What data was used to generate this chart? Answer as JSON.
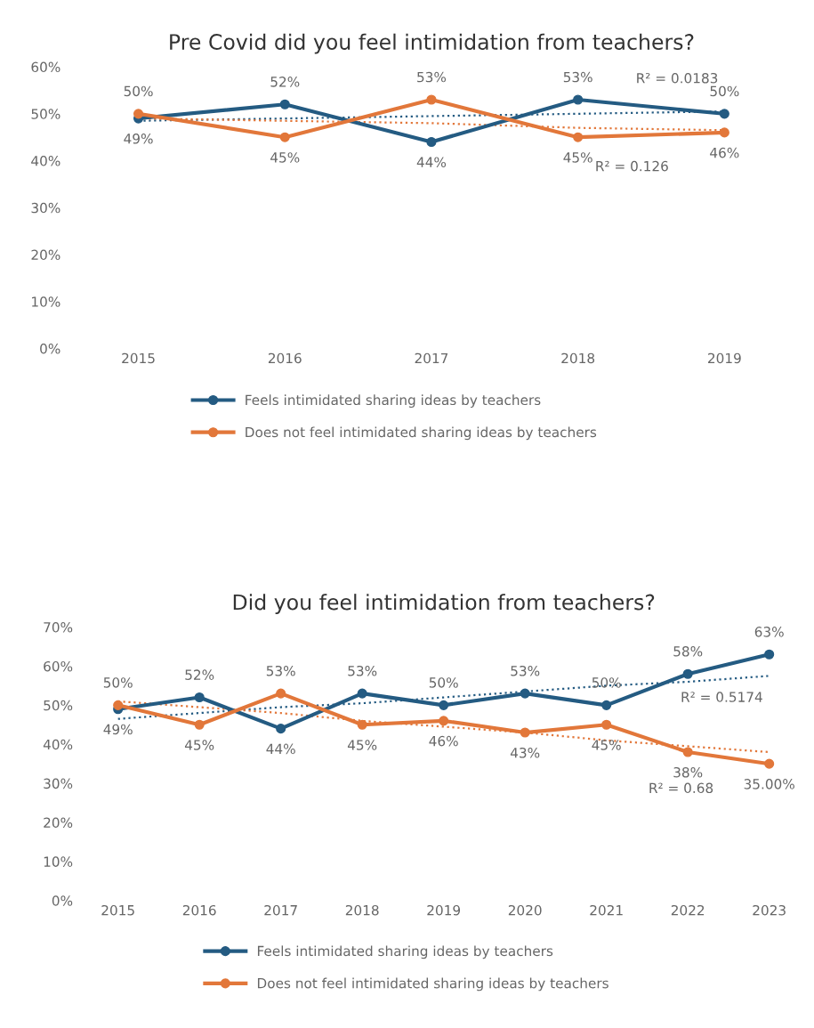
{
  "chart_data": [
    {
      "type": "line",
      "title": "Pre Covid did you feel intimidation from teachers?",
      "categories": [
        "2015",
        "2016",
        "2017",
        "2018",
        "2019"
      ],
      "ylim": [
        0,
        60
      ],
      "yticks": [
        {
          "value": 0,
          "label": "0%"
        },
        {
          "value": 10,
          "label": "10%"
        },
        {
          "value": 20,
          "label": "20%"
        },
        {
          "value": 30,
          "label": "30%"
        },
        {
          "value": 40,
          "label": "40%"
        },
        {
          "value": 50,
          "label": "50%"
        },
        {
          "value": 60,
          "label": "60%"
        }
      ],
      "grid": false,
      "legend": "bottom",
      "marker": "circle",
      "line_style": "solid",
      "series": [
        {
          "name": "Feels intimidated sharing ideas by teachers",
          "color": "#245b82",
          "values": [
            49,
            52,
            44,
            53,
            50
          ],
          "value_labels": [
            "49%",
            "52%",
            "44%",
            "53%",
            "50%"
          ]
        },
        {
          "name": "Does not feel intimidated sharing ideas by teachers",
          "color": "#e2773a",
          "values": [
            50,
            45,
            53,
            45,
            46
          ],
          "value_labels": [
            "50%",
            "45%",
            "53%",
            "45%",
            "46%"
          ]
        },
        {
          "type": "line",
          "line_style": "dotted",
          "marker": "none",
          "color": "#245b82",
          "values": [
            48.5,
            49,
            49.5,
            50,
            50.5
          ]
        },
        {
          "type": "line",
          "line_style": "dotted",
          "marker": "none",
          "color": "#e2773a",
          "values": [
            49,
            48.5,
            48,
            47,
            46.5
          ]
        }
      ],
      "annotations": [
        "R² = 0.0183",
        "R² = 0.126"
      ]
    },
    {
      "type": "line",
      "title": "Did you feel intimidation from teachers?",
      "categories": [
        "2015",
        "2016",
        "2017",
        "2018",
        "2019",
        "2020",
        "2021",
        "2022",
        "2023"
      ],
      "ylim": [
        0,
        70
      ],
      "yticks": [
        {
          "value": 0,
          "label": "0%"
        },
        {
          "value": 10,
          "label": "10%"
        },
        {
          "value": 20,
          "label": "20%"
        },
        {
          "value": 30,
          "label": "30%"
        },
        {
          "value": 40,
          "label": "40%"
        },
        {
          "value": 50,
          "label": "50%"
        },
        {
          "value": 60,
          "label": "60%"
        },
        {
          "value": 70,
          "label": "70%"
        }
      ],
      "grid": false,
      "legend": "bottom",
      "marker": "circle",
      "line_style": "solid",
      "series": [
        {
          "name": "Feels intimidated sharing ideas by teachers",
          "color": "#245b82",
          "values": [
            49,
            52,
            44,
            53,
            50,
            53,
            50,
            58,
            63
          ],
          "value_labels": [
            "49%",
            "52%",
            "44%",
            "53%",
            "50%",
            "53%",
            "50%",
            "58%",
            "63%"
          ]
        },
        {
          "name": "Does not feel intimidated sharing ideas by teachers",
          "color": "#e2773a",
          "values": [
            50,
            45,
            53,
            45,
            46,
            43,
            45,
            38,
            35
          ],
          "value_labels": [
            "50%",
            "45%",
            "53%",
            "45%",
            "46%",
            "43%",
            "45%",
            "38%",
            "35.00%"
          ]
        },
        {
          "type": "line",
          "line_style": "dotted",
          "marker": "none",
          "color": "#245b82",
          "values": [
            46.5,
            48,
            49.5,
            50.5,
            52,
            53.5,
            55,
            56,
            57.5
          ]
        },
        {
          "type": "line",
          "line_style": "dotted",
          "marker": "none",
          "color": "#e2773a",
          "values": [
            51,
            49.5,
            48,
            46,
            44.5,
            43,
            41,
            39.5,
            38
          ]
        }
      ],
      "annotations": [
        "R² = 0.5174",
        "R² = 0.68"
      ]
    }
  ]
}
